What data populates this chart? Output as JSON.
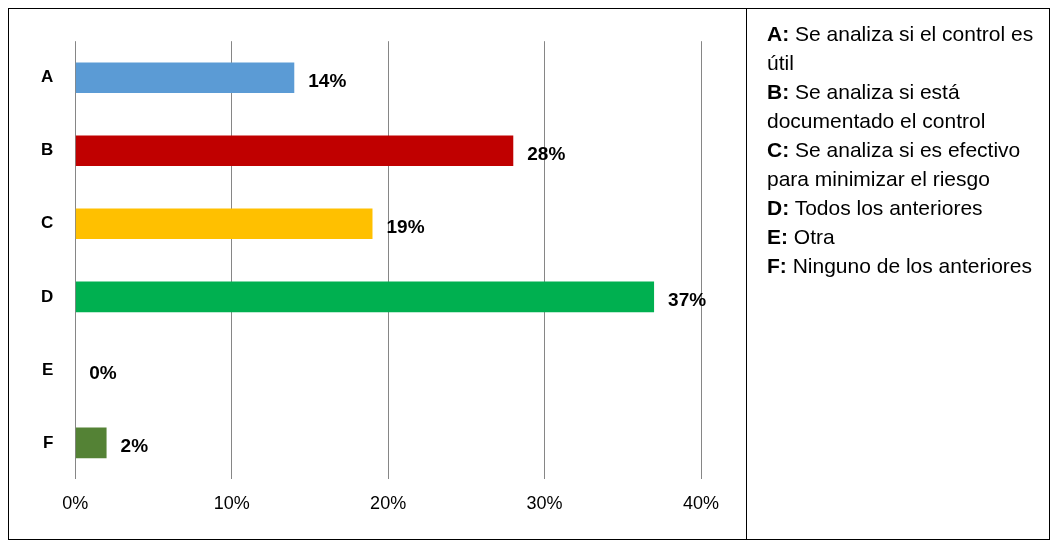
{
  "chart_data": {
    "type": "bar",
    "orientation": "horizontal",
    "categories": [
      "A",
      "B",
      "C",
      "D",
      "E",
      "F"
    ],
    "values": [
      14,
      28,
      19,
      37,
      0,
      2
    ],
    "colors": [
      "#5b9bd5",
      "#c00000",
      "#ffc000",
      "#00b050",
      "#a5a5a5",
      "#548235"
    ],
    "value_labels": [
      "14%",
      "28%",
      "19%",
      "37%",
      "0%",
      "2%"
    ],
    "xlim": [
      0,
      40
    ],
    "xticks": [
      {
        "value": 0,
        "label": "0%"
      },
      {
        "value": 10,
        "label": "10%"
      },
      {
        "value": 20,
        "label": "20%"
      },
      {
        "value": 30,
        "label": "30%"
      },
      {
        "value": 40,
        "label": "40%"
      }
    ],
    "grid": "x",
    "legend": false,
    "annotations": [
      "A: Se analiza si el control es útil",
      "B: Se analiza si está documentado el control",
      "C: Se analiza si es efectivo para minimizar el riesgo",
      "D: Todos los anteriores",
      "E: Otra",
      "F: Ninguno de los anteriores"
    ]
  }
}
